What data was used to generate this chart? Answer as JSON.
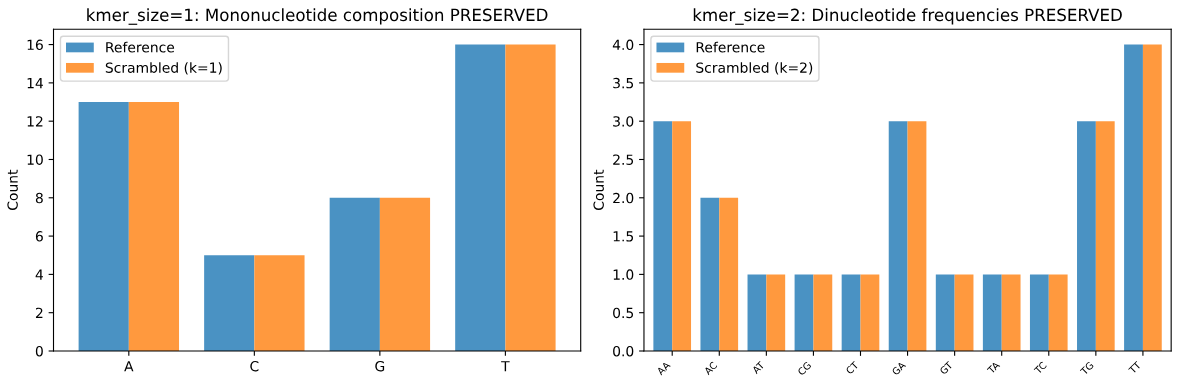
{
  "chart_data": [
    {
      "type": "bar",
      "title": "kmer_size=1: Mononucleotide composition PRESERVED",
      "ylabel": "Count",
      "categories": [
        "A",
        "C",
        "G",
        "T"
      ],
      "series": [
        {
          "name": "Reference",
          "color": "#4a92c3",
          "values": [
            13,
            5,
            8,
            16
          ]
        },
        {
          "name": "Scrambled (k=1)",
          "color": "#ff993e",
          "values": [
            13,
            5,
            8,
            16
          ]
        }
      ],
      "ylim": [
        0,
        16.8
      ],
      "yticks": [
        0,
        2,
        4,
        6,
        8,
        10,
        12,
        14,
        16
      ],
      "legend": "top left",
      "grid": false
    },
    {
      "type": "bar",
      "title": "kmer_size=2: Dinucleotide frequencies PRESERVED",
      "ylabel": "Count",
      "categories": [
        "AA",
        "AC",
        "AT",
        "CG",
        "CT",
        "GA",
        "GT",
        "TA",
        "TC",
        "TG",
        "TT"
      ],
      "series": [
        {
          "name": "Reference",
          "color": "#4a92c3",
          "values": [
            3,
            2,
            1,
            1,
            1,
            3,
            1,
            1,
            1,
            3,
            4
          ]
        },
        {
          "name": "Scrambled (k=2)",
          "color": "#ff993e",
          "values": [
            3,
            2,
            1,
            1,
            1,
            3,
            1,
            1,
            1,
            3,
            4
          ]
        }
      ],
      "ylim": [
        0,
        4.2
      ],
      "yticks": [
        {
          "value": 0,
          "label": "0.0"
        },
        {
          "value": 0.5,
          "label": "0.5"
        },
        {
          "value": 1,
          "label": "1.0"
        },
        {
          "value": 1.5,
          "label": "1.5"
        },
        {
          "value": 2,
          "label": "2.0"
        },
        {
          "value": 2.5,
          "label": "2.5"
        },
        {
          "value": 3,
          "label": "3.0"
        },
        {
          "value": 3.5,
          "label": "3.5"
        },
        {
          "value": 4,
          "label": "4.0"
        }
      ],
      "legend": "top left",
      "grid": false
    }
  ]
}
